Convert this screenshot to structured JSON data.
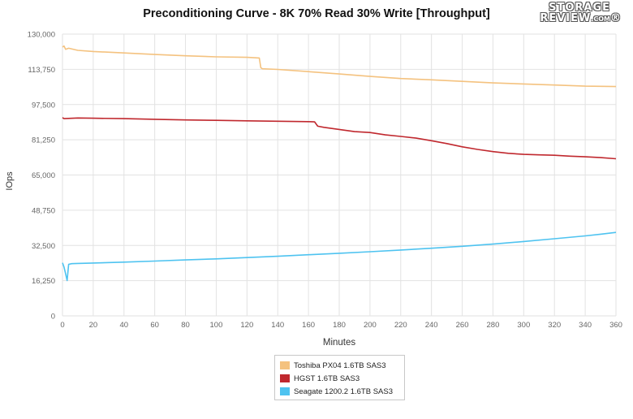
{
  "chart_data": {
    "type": "line",
    "title": "Preconditioning Curve - 8K 70% Read 30% Write [Throughput]",
    "xlabel": "Minutes",
    "ylabel": "IOps",
    "xlim": [
      0,
      360
    ],
    "ylim": [
      0,
      130000
    ],
    "x_ticks": [
      "0",
      "20",
      "40",
      "60",
      "80",
      "100",
      "120",
      "140",
      "160",
      "180",
      "200",
      "220",
      "240",
      "260",
      "280",
      "300",
      "320",
      "340",
      "360"
    ],
    "y_ticks": [
      "0",
      "16,250",
      "32,500",
      "48,750",
      "65,000",
      "81,250",
      "97,500",
      "113,750",
      "130,000"
    ],
    "grid": true,
    "legend_position": "bottom-center",
    "series": [
      {
        "name": "Toshiba PX04 1.6TB SAS3",
        "color": "#F4C27F",
        "x": [
          0,
          1,
          2,
          4,
          10,
          20,
          40,
          60,
          80,
          100,
          120,
          128,
          129,
          130,
          140,
          160,
          180,
          200,
          220,
          240,
          260,
          280,
          300,
          320,
          340,
          360
        ],
        "y": [
          124000,
          124500,
          123000,
          123500,
          122500,
          122000,
          121300,
          120600,
          120000,
          119500,
          119300,
          119000,
          114500,
          114000,
          113700,
          112700,
          111600,
          110500,
          109500,
          108900,
          108200,
          107500,
          107000,
          106500,
          106000,
          105800
        ]
      },
      {
        "name": "HGST 1.6TB SAS3",
        "color": "#C0282E",
        "x": [
          0,
          1,
          10,
          20,
          40,
          60,
          80,
          100,
          120,
          140,
          160,
          164,
          166,
          170,
          180,
          190,
          200,
          210,
          220,
          230,
          240,
          250,
          260,
          270,
          280,
          290,
          300,
          310,
          320,
          330,
          340,
          350,
          360
        ],
        "y": [
          91500,
          91000,
          91300,
          91200,
          91000,
          90700,
          90400,
          90200,
          90000,
          89800,
          89600,
          89500,
          87500,
          87000,
          86000,
          85000,
          84600,
          83500,
          82800,
          82000,
          80800,
          79500,
          78000,
          76800,
          75800,
          75000,
          74500,
          74300,
          74100,
          73700,
          73400,
          73000,
          72500
        ]
      },
      {
        "name": "Seagate 1200.2 1.6TB SAS3",
        "color": "#4EC3F0",
        "x": [
          0,
          1,
          2,
          3,
          4,
          6,
          10,
          20,
          40,
          60,
          80,
          100,
          120,
          140,
          160,
          180,
          200,
          220,
          240,
          260,
          280,
          300,
          320,
          340,
          350,
          360
        ],
        "y": [
          24500,
          22500,
          19500,
          16300,
          23800,
          24100,
          24200,
          24400,
          24800,
          25300,
          25800,
          26300,
          26900,
          27500,
          28200,
          28900,
          29600,
          30400,
          31200,
          32100,
          33100,
          34300,
          35600,
          36900,
          37700,
          38500
        ]
      }
    ]
  }
}
